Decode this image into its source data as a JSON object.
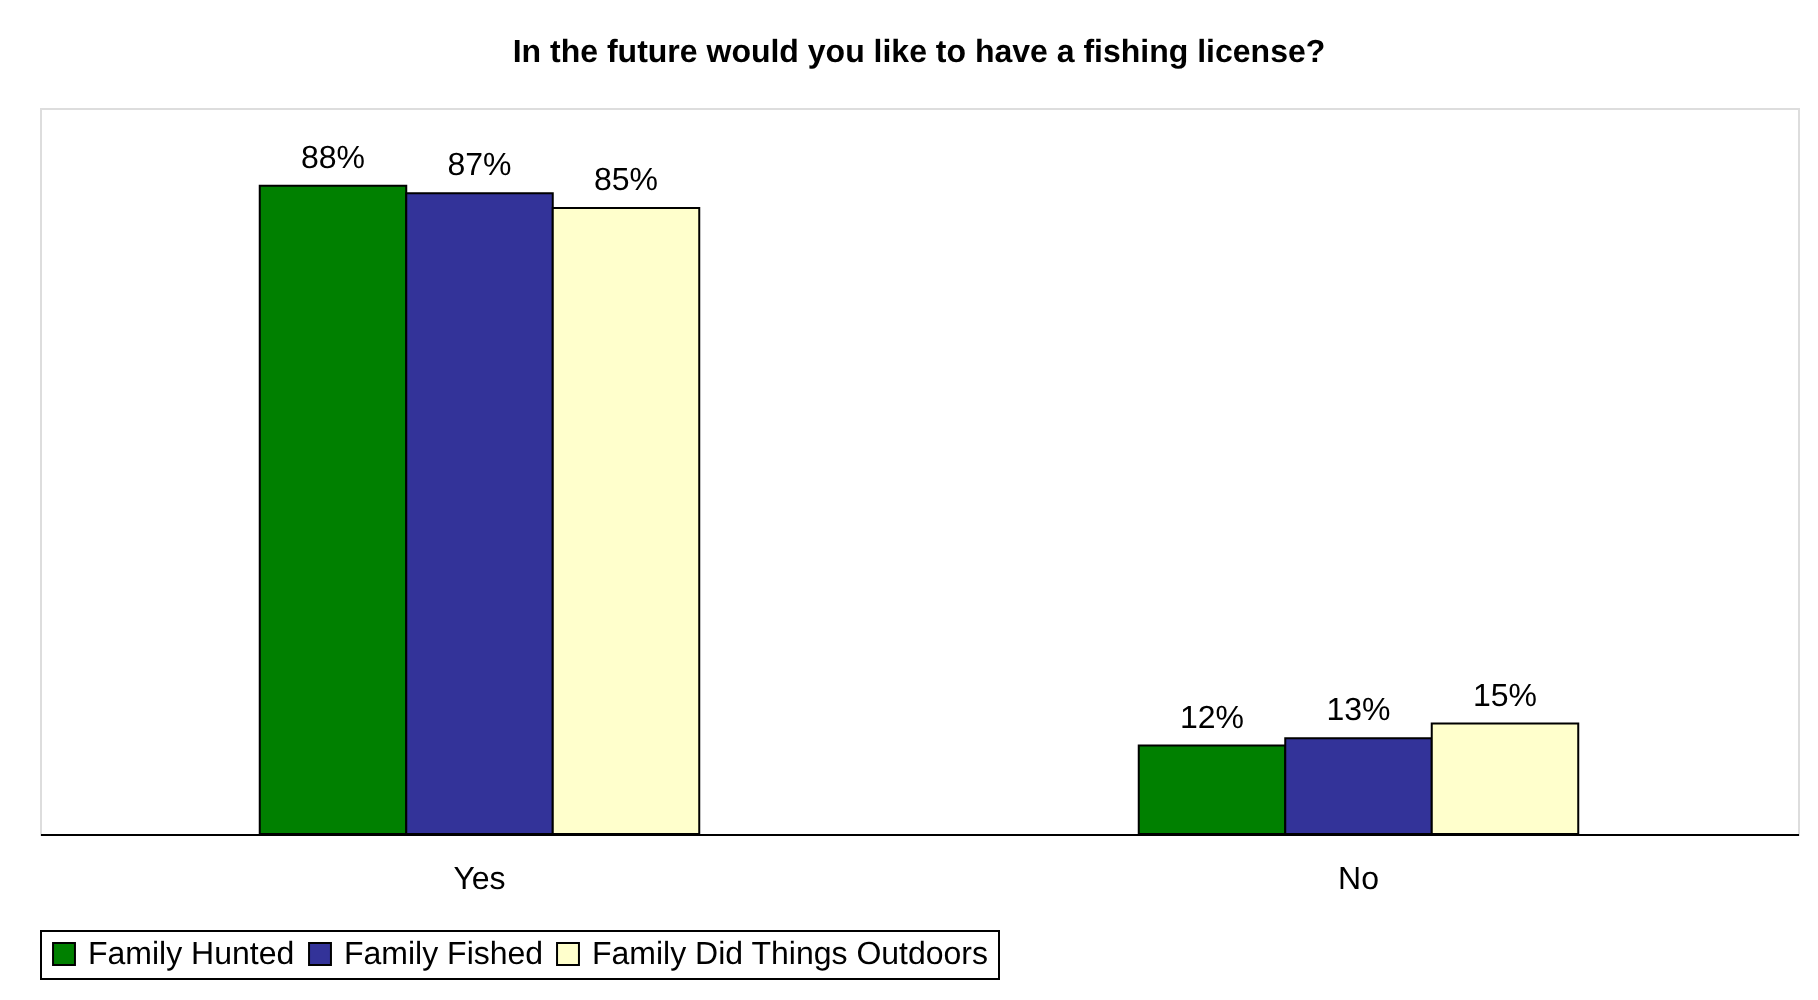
{
  "chart_data": {
    "type": "bar",
    "title": "In the future would you like to have a fishing license?",
    "categories": [
      "Yes",
      "No"
    ],
    "series": [
      {
        "name": "Family Hunted",
        "color": "#008000",
        "values": [
          88,
          12
        ],
        "value_labels": [
          "88%",
          "12%"
        ]
      },
      {
        "name": "Family Fished",
        "color": "#333399",
        "values": [
          87,
          13
        ],
        "value_labels": [
          "87%",
          "13%"
        ]
      },
      {
        "name": "Family Did Things Outdoors",
        "color": "#ffffcc",
        "values": [
          85,
          15
        ],
        "value_labels": [
          "85%",
          "15%"
        ]
      }
    ],
    "legend": "bottom",
    "grid": false
  }
}
